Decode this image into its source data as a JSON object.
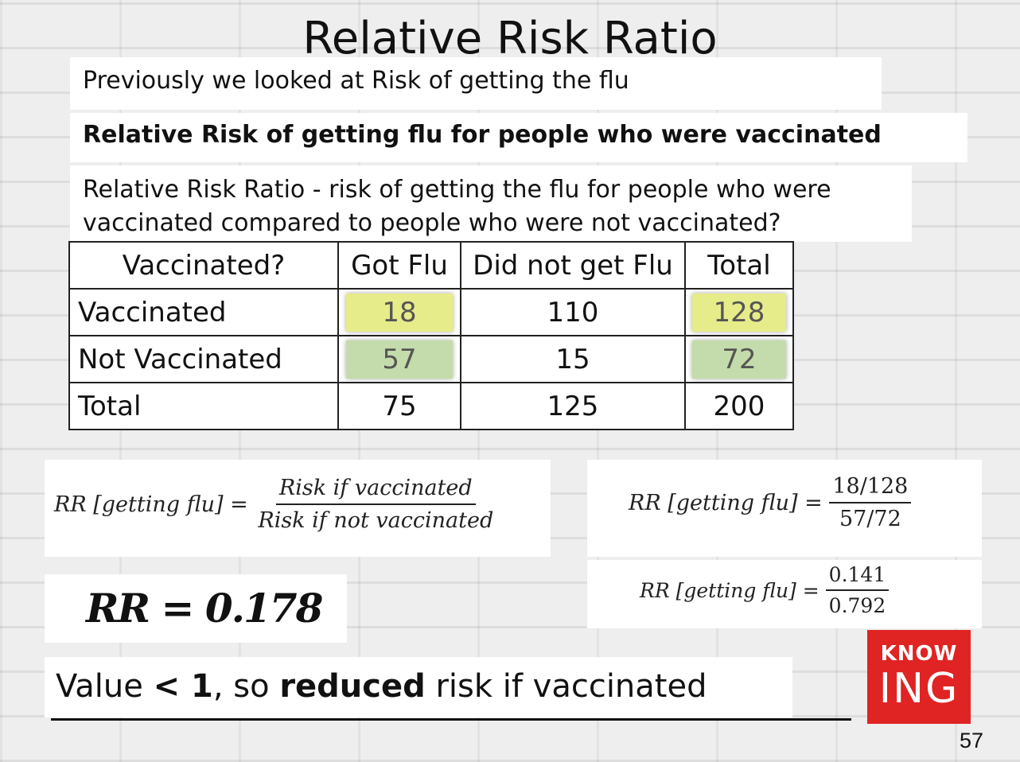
{
  "slide": {
    "title": "Relative Risk Ratio",
    "line1": "Previously we looked at Risk of getting the flu",
    "line2": "Relative Risk of getting flu for people who were vaccinated",
    "line3": "Relative Risk Ratio - risk of getting the flu for people who were vaccinated compared to people who were not vaccinated?"
  },
  "table": {
    "headers": [
      "Vaccinated?",
      "Got Flu",
      "Did not get Flu",
      "Total"
    ],
    "rows": [
      [
        "Vaccinated",
        "18",
        "110",
        "128"
      ],
      [
        "Not Vaccinated",
        "57",
        "15",
        "72"
      ],
      [
        "Total",
        "75",
        "125",
        "200"
      ]
    ],
    "highlight_colors": {
      "vaccinated": "#e6ec8a",
      "not_vaccinated": "#c4dcab"
    }
  },
  "formula": {
    "lhs": "RR [getting flu] =",
    "num": "Risk if vaccinated",
    "den": "Risk if not vaccinated"
  },
  "step1": {
    "lhs": "RR [getting flu] =",
    "num": "18/128",
    "den": "57/72"
  },
  "step2": {
    "lhs": "RR [getting flu] =",
    "num": "0.141",
    "den": "0.792"
  },
  "result": "RR = 0.178",
  "conclusion": {
    "p1": "Value ",
    "p2": "< 1",
    "p3": ", so ",
    "p4": "reduced",
    "p5": " risk if vaccinated"
  },
  "logo": {
    "top": "KNOW",
    "bottom": "ING",
    "color": "#e02323"
  },
  "page_number": "57"
}
